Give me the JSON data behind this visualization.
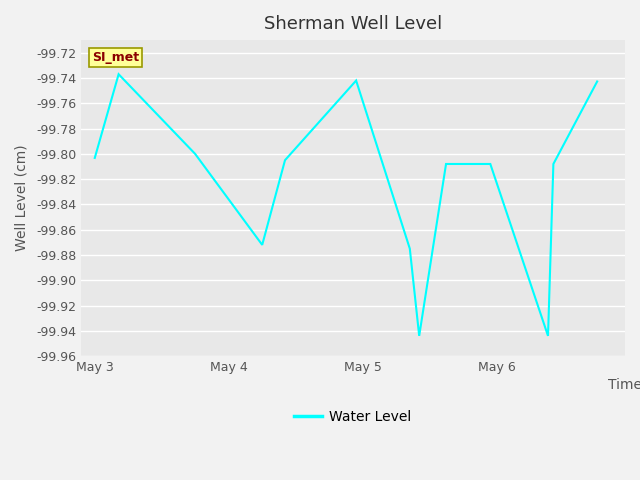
{
  "title": "Sherman Well Level",
  "xlabel": "Time",
  "ylabel": "Well Level (cm)",
  "line_color": "#00FFFF",
  "line_width": 1.5,
  "bg_color": "#E8E8E8",
  "grid_color": "#FFFFFF",
  "ylim": [
    -99.96,
    -99.71
  ],
  "yticks": [
    -99.72,
    -99.74,
    -99.76,
    -99.78,
    -99.8,
    -99.82,
    -99.84,
    -99.86,
    -99.88,
    -99.9,
    -99.92,
    -99.94,
    -99.96
  ],
  "x_values": [
    0.0,
    0.18,
    0.75,
    1.25,
    1.42,
    1.95,
    2.35,
    2.42,
    2.62,
    2.95,
    3.38,
    3.42,
    3.75
  ],
  "y_values": [
    -99.804,
    -99.737,
    -99.8,
    -99.872,
    -99.805,
    -99.742,
    -99.875,
    -99.944,
    -99.808,
    -99.808,
    -99.944,
    -99.808,
    -99.742
  ],
  "xtick_positions": [
    0,
    1,
    2,
    3
  ],
  "xtick_labels": [
    "May 3",
    "May 4",
    "May 5",
    "May 6"
  ],
  "xlim": [
    -0.1,
    3.95
  ],
  "legend_label": "Water Level",
  "annotation_text": "SI_met",
  "title_fontsize": 13,
  "axis_label_fontsize": 10,
  "tick_fontsize": 9,
  "legend_fontsize": 10
}
